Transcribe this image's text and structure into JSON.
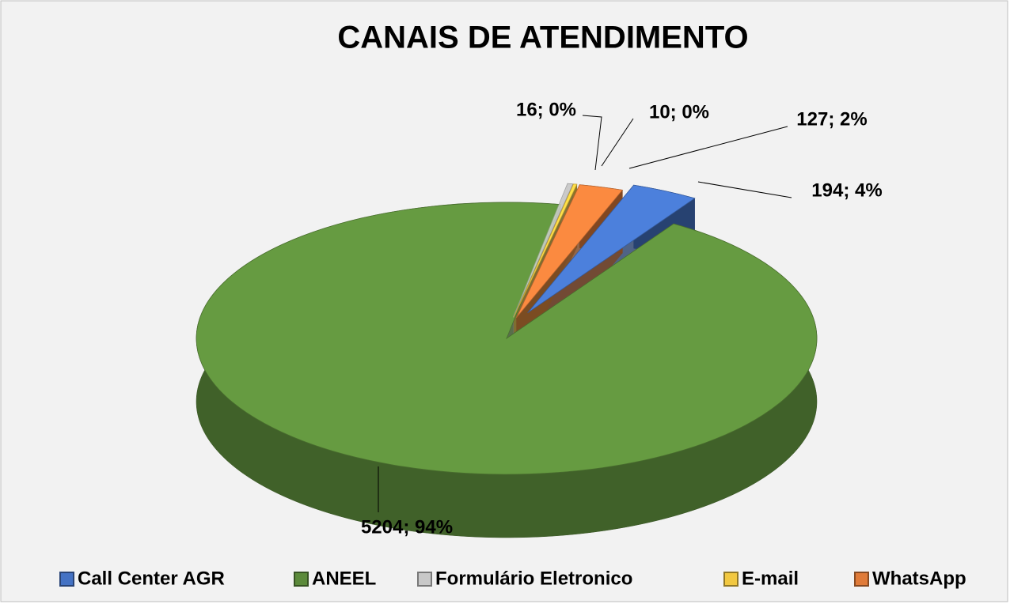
{
  "chart_data": {
    "type": "pie",
    "title": "CANAIS DE ATENDIMENTO",
    "categories": [
      "Call Center AGR",
      "ANEEL",
      "Formulário Eletronico",
      "E-mail",
      "WhatsApp"
    ],
    "values": [
      194,
      5204,
      16,
      10,
      127
    ],
    "value_labels": [
      "194; 4%",
      "5204; 94%",
      "16; 0%",
      "10; 0%",
      "127; 2%"
    ],
    "colors": [
      "#4472c4",
      "#5b8a3a",
      "#c8c8c8",
      "#f2c840",
      "#e07b39"
    ],
    "legend": "bottom"
  }
}
